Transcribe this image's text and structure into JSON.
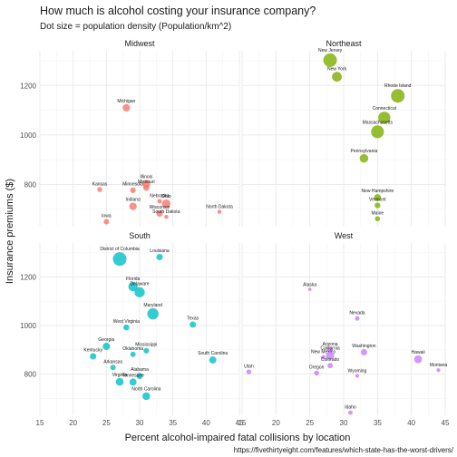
{
  "chart_data": {
    "type": "scatter",
    "title": "How much is alcohol costing your insurance company?",
    "subtitle": "Dot size = population density (Population/km^2)",
    "xlabel": "Percent alcohol-impaired fatal collisions by location",
    "ylabel": "Insurance premiums ($)",
    "caption": "https://fivethirtyeight.com/features/which-state-has-the-worst-drivers/",
    "xlim": [
      15,
      45
    ],
    "ylim": [
      630,
      1340
    ],
    "x_ticks": [
      15,
      20,
      25,
      30,
      35,
      40,
      45
    ],
    "y_ticks": [
      800,
      1000,
      1200
    ],
    "grid": true,
    "facets": [
      {
        "name": "Midwest",
        "color": "#F8766D",
        "points": [
          {
            "state": "Michigan",
            "x": 28,
            "y": 1110,
            "density": 68
          },
          {
            "state": "Kansas",
            "x": 24,
            "y": 780,
            "density": 14
          },
          {
            "state": "Minnesota",
            "x": 29,
            "y": 777,
            "density": 26
          },
          {
            "state": "Illinois",
            "x": 31,
            "y": 803,
            "density": 89
          },
          {
            "state": "Missouri",
            "x": 31,
            "y": 787,
            "density": 34
          },
          {
            "state": "Nebraska",
            "x": 33,
            "y": 733,
            "density": 9
          },
          {
            "state": "Ohio",
            "x": 34,
            "y": 723,
            "density": 109
          },
          {
            "state": "Indiana",
            "x": 29,
            "y": 712,
            "density": 71
          },
          {
            "state": "Wisconsin",
            "x": 33,
            "y": 683,
            "density": 41
          },
          {
            "state": "Iowa",
            "x": 25,
            "y": 650,
            "density": 21
          },
          {
            "state": "South Dakota",
            "x": 34,
            "y": 670,
            "density": 4
          },
          {
            "state": "North Dakota",
            "x": 42,
            "y": 690,
            "density": 4
          }
        ]
      },
      {
        "name": "Northeast",
        "color": "#7CAE00",
        "points": [
          {
            "state": "New Jersey",
            "x": 28,
            "y": 1302,
            "density": 470
          },
          {
            "state": "New York",
            "x": 29,
            "y": 1235,
            "density": 160
          },
          {
            "state": "Rhode Island",
            "x": 38,
            "y": 1158,
            "density": 390
          },
          {
            "state": "Connecticut",
            "x": 36,
            "y": 1070,
            "density": 286
          },
          {
            "state": "Massachusetts",
            "x": 35,
            "y": 1013,
            "density": 334
          },
          {
            "state": "Pennsylvania",
            "x": 33,
            "y": 906,
            "density": 110
          },
          {
            "state": "New Hampshire",
            "x": 35,
            "y": 747,
            "density": 57
          },
          {
            "state": "Vermont",
            "x": 35,
            "y": 716,
            "density": 26
          },
          {
            "state": "Maine",
            "x": 35,
            "y": 662,
            "density": 16
          }
        ]
      },
      {
        "name": "South",
        "color": "#00BFC4",
        "points": [
          {
            "state": "District of Columbia",
            "x": 27,
            "y": 1274,
            "density": 4200
          },
          {
            "state": "Louisiana",
            "x": 33,
            "y": 1282,
            "density": 41
          },
          {
            "state": "Florida",
            "x": 29,
            "y": 1160,
            "density": 139
          },
          {
            "state": "Delaware",
            "x": 30,
            "y": 1137,
            "density": 180
          },
          {
            "state": "Maryland",
            "x": 32,
            "y": 1048,
            "density": 236
          },
          {
            "state": "Texas",
            "x": 38,
            "y": 1004,
            "density": 39
          },
          {
            "state": "West Virginia",
            "x": 28,
            "y": 992,
            "density": 30
          },
          {
            "state": "Georgia",
            "x": 25,
            "y": 914,
            "density": 66
          },
          {
            "state": "Mississippi",
            "x": 31,
            "y": 896,
            "density": 24
          },
          {
            "state": "Oklahoma",
            "x": 29,
            "y": 881,
            "density": 21
          },
          {
            "state": "South Carolina",
            "x": 41,
            "y": 858,
            "density": 61
          },
          {
            "state": "Kentucky",
            "x": 23,
            "y": 873,
            "density": 43
          },
          {
            "state": "Arkansas",
            "x": 26,
            "y": 827,
            "density": 22
          },
          {
            "state": "Alabama",
            "x": 30,
            "y": 792,
            "density": 36
          },
          {
            "state": "Virginia",
            "x": 27,
            "y": 768,
            "density": 80
          },
          {
            "state": "Tennessee",
            "x": 29,
            "y": 767,
            "density": 60
          },
          {
            "state": "North Carolina",
            "x": 31,
            "y": 709,
            "density": 79
          }
        ]
      },
      {
        "name": "West",
        "color": "#C77CFF",
        "points": [
          {
            "state": "Alaska",
            "x": 25,
            "y": 1149,
            "density": 0.5
          },
          {
            "state": "Nevada",
            "x": 32,
            "y": 1029,
            "density": 10
          },
          {
            "state": "Arizona",
            "x": 28,
            "y": 899,
            "density": 23
          },
          {
            "state": "Washington",
            "x": 33,
            "y": 890,
            "density": 40
          },
          {
            "state": "New Mexico",
            "x": 27,
            "y": 869,
            "density": 7
          },
          {
            "state": "California",
            "x": 28,
            "y": 876,
            "density": 96
          },
          {
            "state": "Hawaii",
            "x": 41,
            "y": 861,
            "density": 84
          },
          {
            "state": "Utah",
            "x": 16,
            "y": 809,
            "density": 14
          },
          {
            "state": "Colorado",
            "x": 28,
            "y": 835,
            "density": 20
          },
          {
            "state": "Oregon",
            "x": 26,
            "y": 804,
            "density": 16
          },
          {
            "state": "Wyoming",
            "x": 32,
            "y": 792,
            "density": 2
          },
          {
            "state": "Montana",
            "x": 44,
            "y": 816,
            "density": 3
          },
          {
            "state": "Idaho",
            "x": 31,
            "y": 641,
            "density": 8
          }
        ]
      }
    ]
  }
}
